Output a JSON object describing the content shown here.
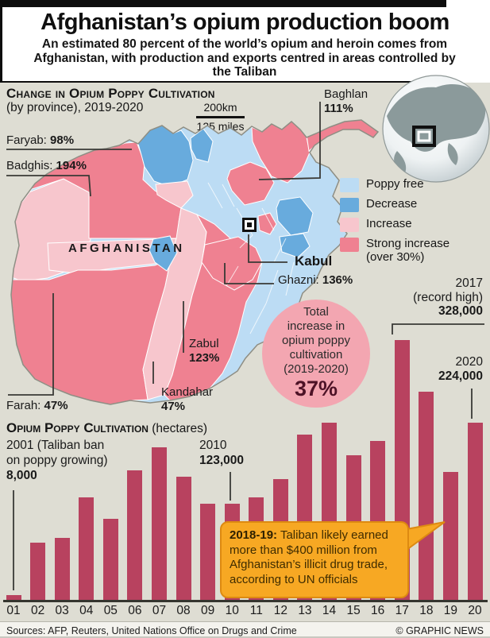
{
  "header": {
    "title": "Afghanistan’s opium production boom",
    "subtitle": "An estimated 80 percent of the world’s opium and heroin comes from Afghanistan, with production and exports centred in areas controlled by the Taliban"
  },
  "map_section": {
    "heading": "Change in Opium Poppy Cultivation",
    "subheading": "(by province), 2019-2020",
    "scale": {
      "km": "200km",
      "miles": "125 miles"
    },
    "country_label": "AFGHANISTAN",
    "capital": {
      "name": "Kabul"
    },
    "provinces": {
      "faryab": {
        "name": "Faryab:",
        "value": "98%"
      },
      "badghis": {
        "name": "Badghis:",
        "value": "194%"
      },
      "baghlan": {
        "name": "Baghlan",
        "value": "111%"
      },
      "ghazni": {
        "name": "Ghazni:",
        "value": "136%"
      },
      "zabul": {
        "name": "Zabul",
        "value": "123%"
      },
      "kandahar": {
        "name": "Kandahar",
        "value": "47%"
      },
      "farah": {
        "name": "Farah:",
        "value": "47%"
      }
    },
    "legend": [
      {
        "label": "Poppy free",
        "color": "#bcdcf4"
      },
      {
        "label": "Decrease",
        "color": "#68abdd"
      },
      {
        "label": "Increase",
        "color": "#f7c6cd"
      },
      {
        "label": "Strong increase (over 30%)",
        "color": "#ef8191"
      }
    ],
    "total_circle": {
      "l1": "Total",
      "l2": "increase in",
      "l3": "opium poppy",
      "l4": "cultivation",
      "l5": "(2019-2020)",
      "value": "37%"
    }
  },
  "chart_data": {
    "type": "bar",
    "title": "Opium Poppy Cultivation",
    "unit_suffix": " (hectares)",
    "ylabel": "hectares",
    "bar_color": "#b8425f",
    "categories": [
      "01",
      "02",
      "03",
      "04",
      "05",
      "06",
      "07",
      "08",
      "09",
      "10",
      "11",
      "12",
      "13",
      "14",
      "15",
      "16",
      "17",
      "18",
      "19",
      "20"
    ],
    "values": [
      8000,
      74000,
      80000,
      131000,
      104000,
      165000,
      193000,
      157000,
      123000,
      123000,
      131000,
      154000,
      209000,
      224000,
      183000,
      201000,
      328000,
      263000,
      163000,
      224000
    ],
    "annotations": {
      "a2001": {
        "l1": "2001 (Taliban ban",
        "l2": "on poppy growing)",
        "value": "8,000"
      },
      "a2010": {
        "year": "2010",
        "value": "123,000"
      },
      "a2017": {
        "year": "2017",
        "note": "(record high)",
        "value": "328,000"
      },
      "a2020": {
        "year": "2020",
        "value": "224,000"
      }
    }
  },
  "callout": {
    "highlight": "2018-19:",
    "text": " Taliban likely earned more than $400 million from Afghanistan’s illicit drug trade, according to UN officials"
  },
  "footer": {
    "sources": "Sources: AFP, Reuters, United Nations Office on Drugs and Crime",
    "credit": "© GRAPHIC NEWS"
  }
}
